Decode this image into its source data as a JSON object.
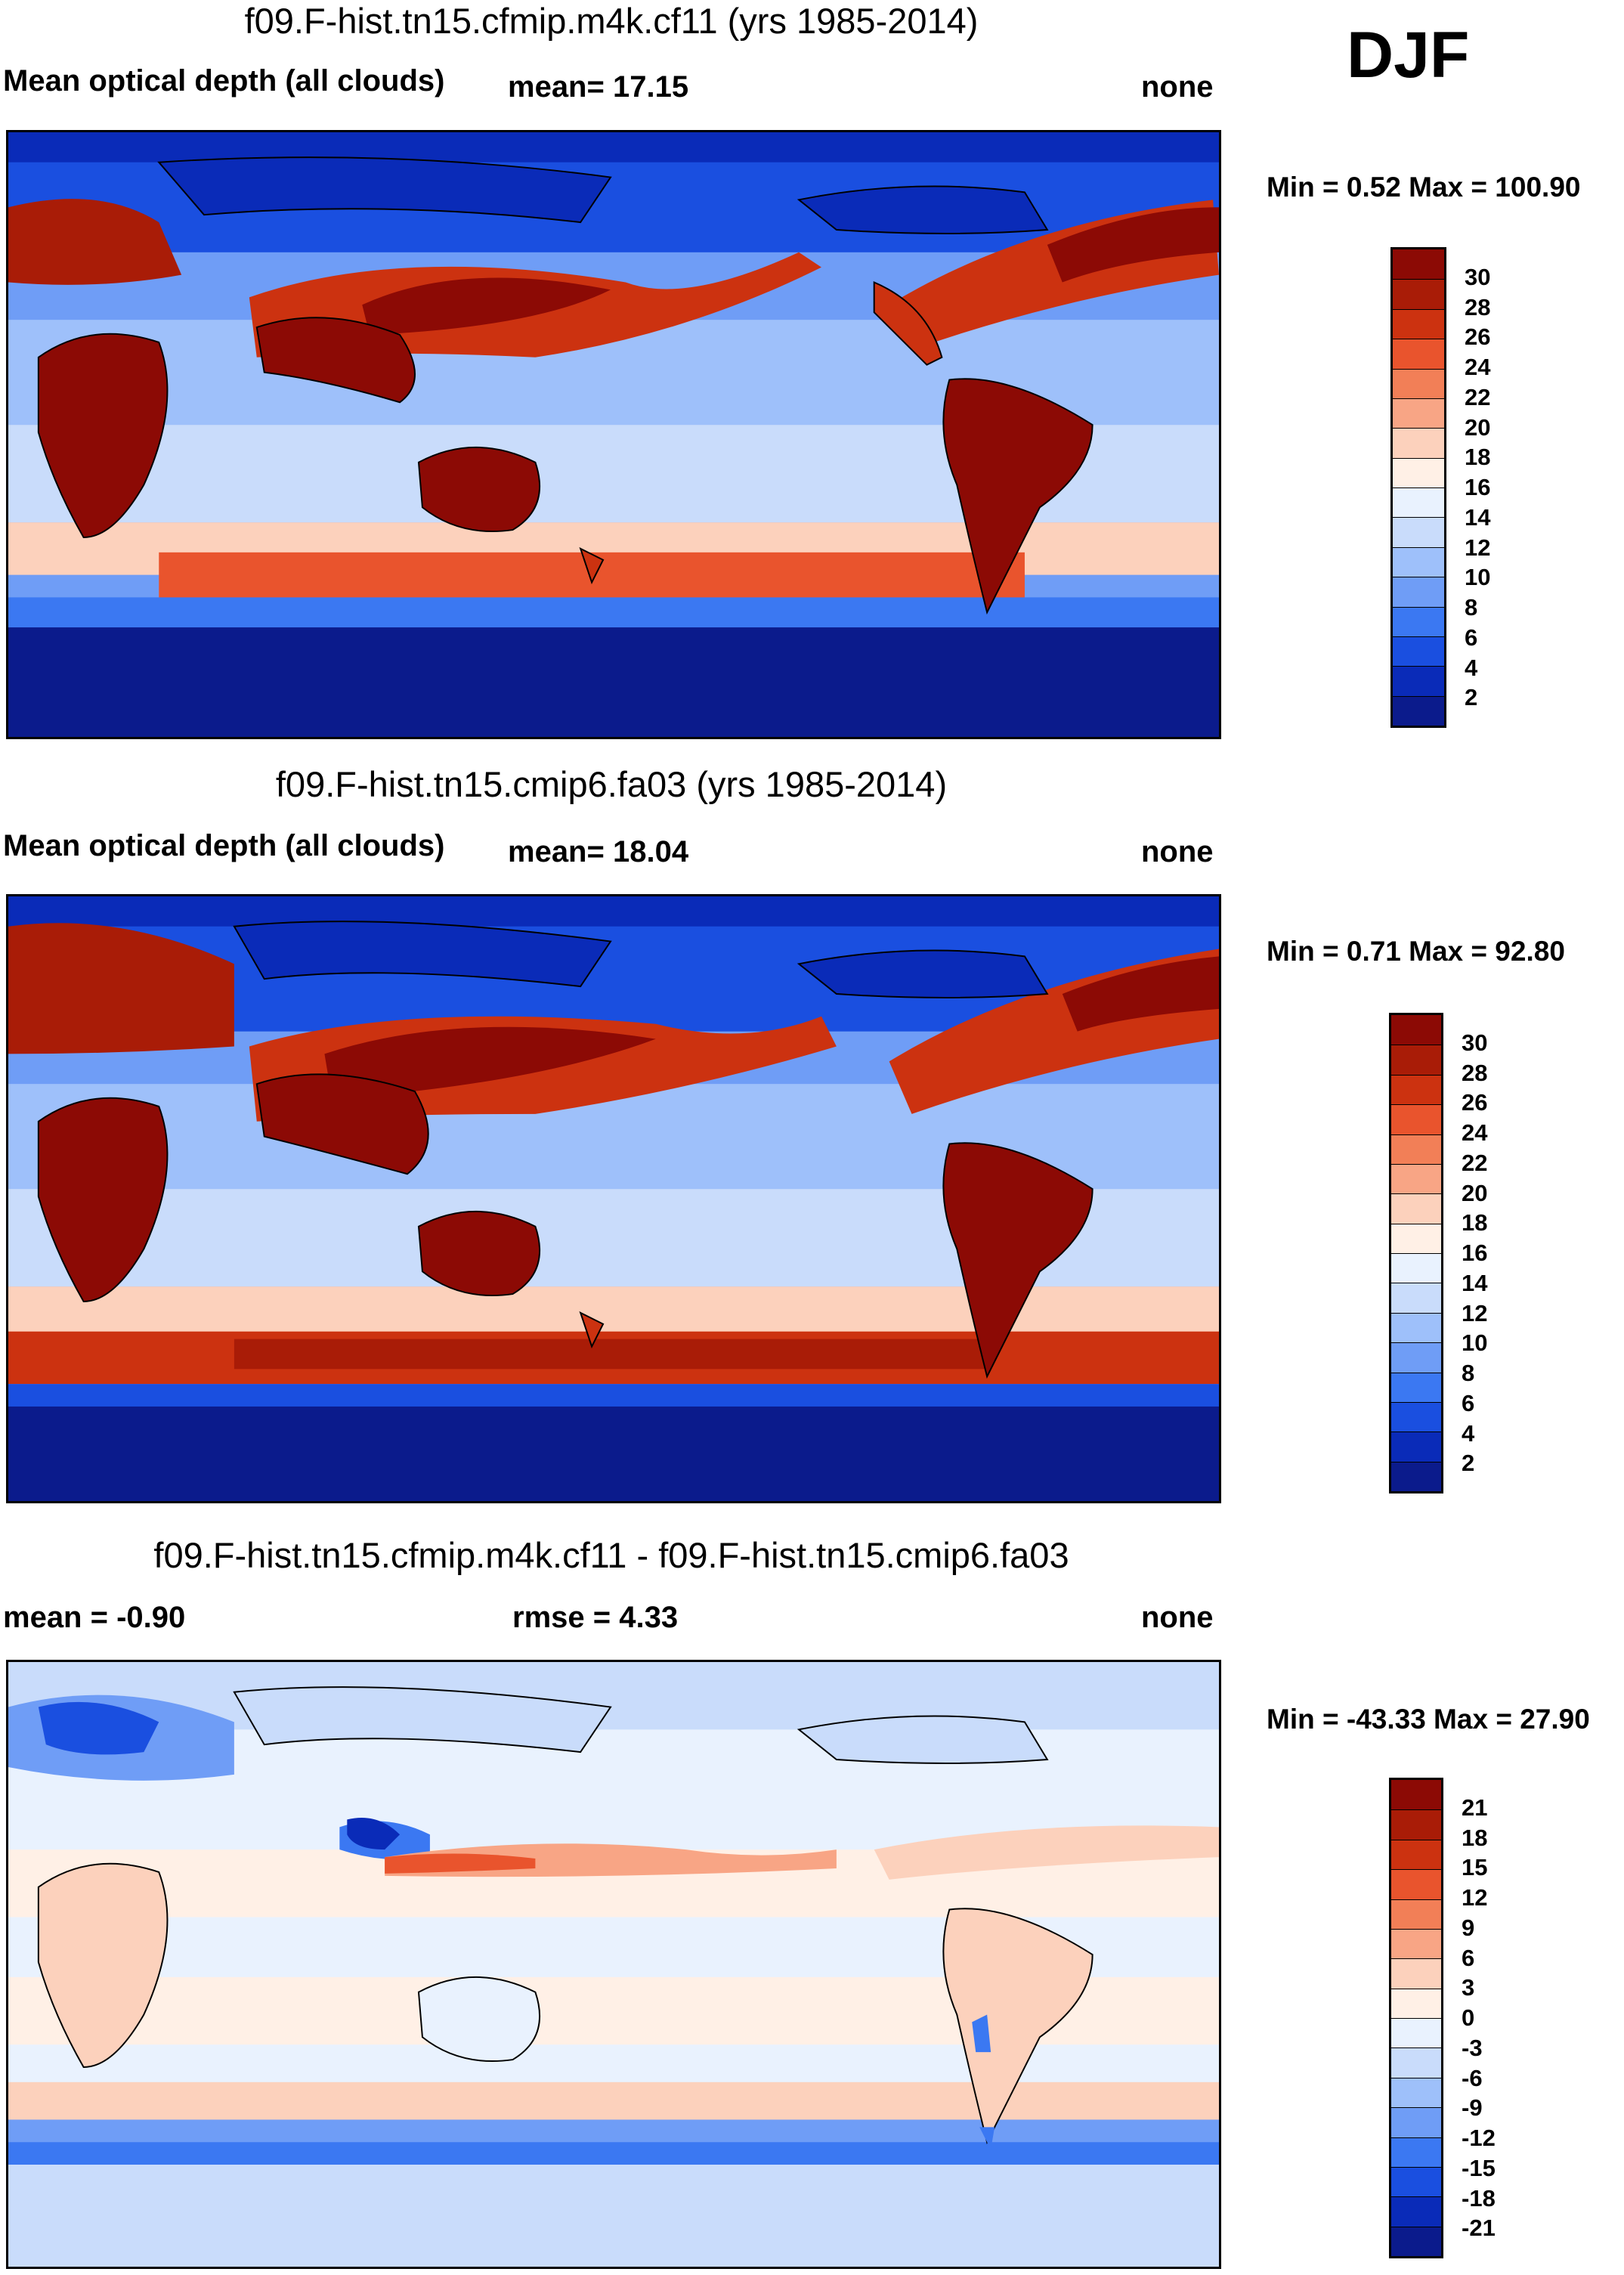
{
  "season": "DJF",
  "palette_abs": [
    "#0b1b8c",
    "#0a2bb8",
    "#1a4fe0",
    "#3b78f2",
    "#6f9df6",
    "#9ec0fa",
    "#c9dcfb",
    "#e9f2fe",
    "#fff0e6",
    "#fcd1bc",
    "#f8a585",
    "#f27f57",
    "#e9542d",
    "#cc3210",
    "#a91c07",
    "#8c0a05"
  ],
  "palette_diff": [
    "#0b1b8c",
    "#0a2bb8",
    "#1a4fe0",
    "#3b78f2",
    "#6f9df6",
    "#9ec0fa",
    "#c9dcfb",
    "#e9f2fe",
    "#fff0e6",
    "#fcd1bc",
    "#f8a585",
    "#f27f57",
    "#e9542d",
    "#cc3210",
    "#a91c07",
    "#8c0a05"
  ],
  "panels": [
    {
      "title": "f09.F-hist.tn15.cfmip.m4k.cf11 (yrs 1985-2014)",
      "left_label": "Mean optical depth (all clouds)",
      "mid_label": "mean=  17.15",
      "right_label": "none",
      "minmax": "Min =   0.52 Max = 100.90",
      "ticks": [
        "30",
        "28",
        "26",
        "24",
        "22",
        "20",
        "18",
        "16",
        "14",
        "12",
        "10",
        "8",
        "6",
        "4",
        "2"
      ]
    },
    {
      "title": "f09.F-hist.tn15.cmip6.fa03 (yrs 1985-2014)",
      "left_label": "Mean optical depth (all clouds)",
      "mid_label": "mean=  18.04",
      "right_label": "none",
      "minmax": "Min =   0.71 Max =  92.80",
      "ticks": [
        "30",
        "28",
        "26",
        "24",
        "22",
        "20",
        "18",
        "16",
        "14",
        "12",
        "10",
        "8",
        "6",
        "4",
        "2"
      ]
    },
    {
      "title": "f09.F-hist.tn15.cfmip.m4k.cf11 - f09.F-hist.tn15.cmip6.fa03",
      "left_label": "mean =  -0.90",
      "mid_label": "rmse =    4.33",
      "right_label": "none",
      "minmax": "Min = -43.33 Max =  27.90",
      "ticks": [
        "21",
        "18",
        "15",
        "12",
        "9",
        "6",
        "3",
        "0",
        "-3",
        "-6",
        "-9",
        "-12",
        "-15",
        "-18",
        "-21"
      ]
    }
  ],
  "chart_data": [
    {
      "type": "heatmap",
      "title": "f09.F-hist.tn15.cfmip.m4k.cf11 (yrs 1985-2014)",
      "variable": "Mean optical depth (all clouds)",
      "mean": 17.15,
      "min": 0.52,
      "max": 100.9,
      "units": "none",
      "season": "DJF",
      "levels": [
        2,
        4,
        6,
        8,
        10,
        12,
        14,
        16,
        18,
        20,
        22,
        24,
        26,
        28,
        30
      ]
    },
    {
      "type": "heatmap",
      "title": "f09.F-hist.tn15.cmip6.fa03 (yrs 1985-2014)",
      "variable": "Mean optical depth (all clouds)",
      "mean": 18.04,
      "min": 0.71,
      "max": 92.8,
      "units": "none",
      "season": "DJF",
      "levels": [
        2,
        4,
        6,
        8,
        10,
        12,
        14,
        16,
        18,
        20,
        22,
        24,
        26,
        28,
        30
      ]
    },
    {
      "type": "heatmap",
      "title": "f09.F-hist.tn15.cfmip.m4k.cf11 - f09.F-hist.tn15.cmip6.fa03",
      "variable": "difference",
      "mean": -0.9,
      "rmse": 4.33,
      "min": -43.33,
      "max": 27.9,
      "units": "none",
      "season": "DJF",
      "levels": [
        -21,
        -18,
        -15,
        -12,
        -9,
        -6,
        -3,
        0,
        3,
        6,
        9,
        12,
        15,
        18,
        21
      ]
    }
  ]
}
